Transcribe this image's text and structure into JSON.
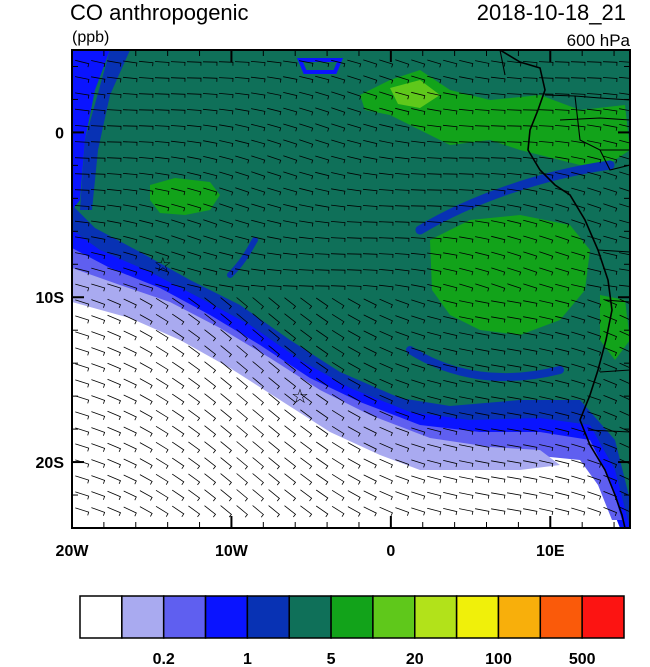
{
  "header": {
    "title": "CO anthropogenic",
    "units": "(ppb)",
    "datetime": "2018-10-18_21",
    "level": "600 hPa"
  },
  "map": {
    "lon_range": [
      -20,
      15
    ],
    "lat_range": [
      -24,
      5
    ],
    "x_ticks": [
      {
        "value": -20,
        "label": "20W"
      },
      {
        "value": -10,
        "label": "10W"
      },
      {
        "value": 0,
        "label": "0"
      },
      {
        "value": 10,
        "label": "10E"
      }
    ],
    "y_ticks": [
      {
        "value": 0,
        "label": "0"
      },
      {
        "value": -10,
        "label": "10S"
      },
      {
        "value": -20,
        "label": "20S"
      }
    ],
    "markers": [
      {
        "name": "star-marker-1",
        "lon": -14.3,
        "lat": -8.0,
        "symbol": "☆"
      },
      {
        "name": "star-marker-2",
        "lon": -5.7,
        "lat": -16.0,
        "symbol": "☆"
      }
    ]
  },
  "colorbar": {
    "colors": [
      "#ffffff",
      "#a9aaf0",
      "#5f5ff0",
      "#0a14ff",
      "#0832b4",
      "#0f7059",
      "#12a31a",
      "#5fc81b",
      "#b2e21a",
      "#f0f00a",
      "#f8af0b",
      "#fa5a0a",
      "#fc1412"
    ],
    "labels": [
      {
        "after_box": 2,
        "text": "0.2"
      },
      {
        "after_box": 4,
        "text": "1"
      },
      {
        "after_box": 6,
        "text": "5"
      },
      {
        "after_box": 8,
        "text": "20"
      },
      {
        "after_box": 10,
        "text": "100"
      },
      {
        "after_box": 12,
        "text": "500"
      }
    ]
  }
}
